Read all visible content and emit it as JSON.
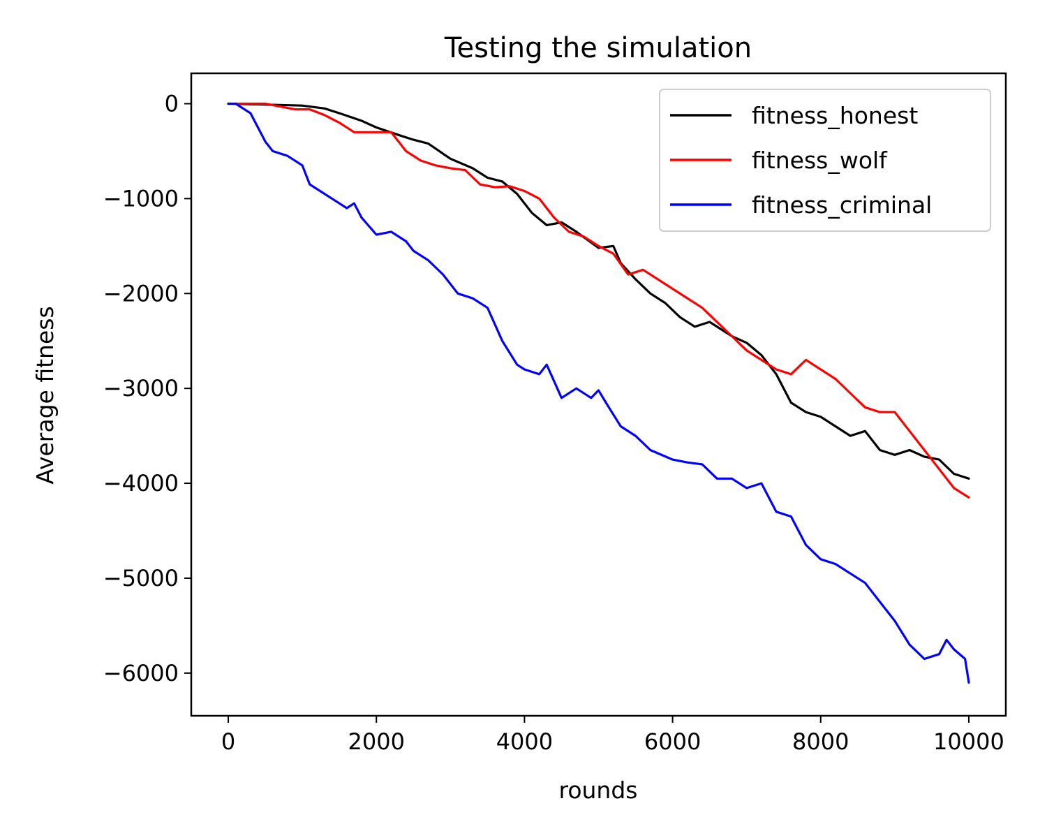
{
  "chart_data": {
    "type": "line",
    "title": "Testing the simulation",
    "xlabel": "rounds",
    "ylabel": "Average fitness",
    "xlim": [
      -500,
      10500
    ],
    "ylim": [
      -6450,
      320
    ],
    "xticks": [
      0,
      2000,
      4000,
      6000,
      8000,
      10000
    ],
    "xtick_labels": [
      "0",
      "2000",
      "4000",
      "6000",
      "8000",
      "10000"
    ],
    "yticks": [
      0,
      -1000,
      -2000,
      -3000,
      -4000,
      -5000,
      -6000
    ],
    "ytick_labels": [
      "0",
      "−1000",
      "−2000",
      "−3000",
      "−4000",
      "−5000",
      "−6000"
    ],
    "grid": false,
    "legend_position": "top-right",
    "series": [
      {
        "name": "fitness_honest",
        "color": "#000000",
        "x": [
          0,
          500,
          1000,
          1300,
          1500,
          1800,
          2000,
          2300,
          2500,
          2700,
          3000,
          3300,
          3500,
          3700,
          3900,
          4100,
          4300,
          4500,
          4700,
          5000,
          5200,
          5300,
          5500,
          5700,
          5900,
          6100,
          6300,
          6500,
          6800,
          7000,
          7200,
          7400,
          7600,
          7800,
          8000,
          8200,
          8400,
          8600,
          8800,
          9000,
          9200,
          9400,
          9600,
          9800,
          10000
        ],
        "y": [
          0,
          -10,
          -20,
          -50,
          -100,
          -180,
          -250,
          -330,
          -380,
          -420,
          -580,
          -680,
          -780,
          -820,
          -950,
          -1150,
          -1280,
          -1250,
          -1350,
          -1520,
          -1500,
          -1680,
          -1850,
          -2000,
          -2100,
          -2250,
          -2350,
          -2300,
          -2450,
          -2520,
          -2650,
          -2850,
          -3150,
          -3250,
          -3300,
          -3400,
          -3500,
          -3450,
          -3650,
          -3700,
          -3650,
          -3720,
          -3750,
          -3900,
          -3950
        ]
      },
      {
        "name": "fitness_wolf",
        "color": "#ff0000",
        "x": [
          100,
          500,
          900,
          1100,
          1300,
          1500,
          1700,
          2000,
          2200,
          2400,
          2600,
          2800,
          3000,
          3200,
          3400,
          3600,
          3800,
          4000,
          4200,
          4400,
          4600,
          4800,
          5000,
          5200,
          5400,
          5600,
          5800,
          6000,
          6200,
          6400,
          6600,
          6800,
          7000,
          7200,
          7400,
          7600,
          7800,
          8000,
          8200,
          8400,
          8600,
          8800,
          9000,
          9200,
          9400,
          9600,
          9800,
          10000
        ],
        "y": [
          0,
          0,
          -60,
          -60,
          -120,
          -200,
          -300,
          -300,
          -300,
          -500,
          -600,
          -650,
          -680,
          -700,
          -850,
          -880,
          -870,
          -920,
          -1000,
          -1200,
          -1350,
          -1400,
          -1500,
          -1580,
          -1800,
          -1750,
          -1850,
          -1950,
          -2050,
          -2150,
          -2300,
          -2450,
          -2600,
          -2700,
          -2800,
          -2850,
          -2700,
          -2800,
          -2900,
          -3050,
          -3200,
          -3250,
          -3250,
          -3450,
          -3650,
          -3850,
          -4050,
          -4150
        ]
      },
      {
        "name": "fitness_criminal",
        "color": "#0000ff",
        "x": [
          0,
          100,
          300,
          500,
          600,
          800,
          1000,
          1100,
          1300,
          1500,
          1600,
          1700,
          1800,
          2000,
          2200,
          2400,
          2500,
          2700,
          2900,
          3100,
          3300,
          3500,
          3700,
          3900,
          4000,
          4200,
          4300,
          4500,
          4700,
          4900,
          5000,
          5100,
          5300,
          5500,
          5700,
          6000,
          6200,
          6400,
          6600,
          6800,
          7000,
          7200,
          7400,
          7600,
          7800,
          8000,
          8200,
          8400,
          8600,
          8800,
          9000,
          9200,
          9400,
          9600,
          9700,
          9800,
          9950,
          10000
        ],
        "y": [
          0,
          0,
          -100,
          -400,
          -500,
          -550,
          -650,
          -850,
          -950,
          -1050,
          -1100,
          -1050,
          -1200,
          -1380,
          -1350,
          -1450,
          -1550,
          -1650,
          -1800,
          -2000,
          -2050,
          -2150,
          -2500,
          -2750,
          -2800,
          -2850,
          -2750,
          -3100,
          -3000,
          -3100,
          -3020,
          -3150,
          -3400,
          -3500,
          -3650,
          -3750,
          -3780,
          -3800,
          -3950,
          -3950,
          -4050,
          -4000,
          -4300,
          -4350,
          -4650,
          -4800,
          -4850,
          -4950,
          -5050,
          -5250,
          -5450,
          -5700,
          -5850,
          -5800,
          -5650,
          -5750,
          -5850,
          -6100
        ]
      }
    ]
  }
}
